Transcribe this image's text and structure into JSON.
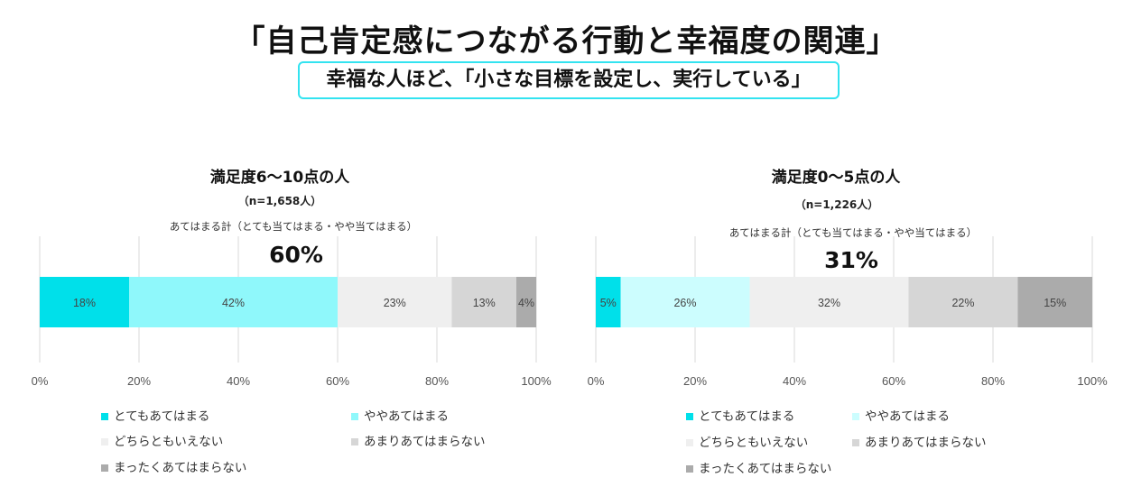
{
  "header": {
    "title": "「自己肯定感につながる行動と幸福度の関連」",
    "subtitle": "幸福な人ほど、「小さな目標を設定し、実行している」"
  },
  "chart_data": [
    {
      "type": "bar",
      "orientation": "horizontal-stacked-100",
      "title": "満足度6〜10点の人",
      "sample": "（n=1,658人）",
      "total_label": "あてはまる計（とても当てはまる・やや当てはまる）",
      "total_value": "60%",
      "xlim": [
        0,
        100
      ],
      "ticks": [
        "0%",
        "20%",
        "40%",
        "60%",
        "80%",
        "100%"
      ],
      "tick_values": [
        0,
        20,
        40,
        60,
        80,
        100
      ],
      "grid": true,
      "legend_position": "bottom",
      "series": [
        {
          "name": "とてもあてはまる",
          "values": [
            18
          ],
          "label": "18%",
          "color": "#00e0ea"
        },
        {
          "name": "ややあてはまる",
          "values": [
            42
          ],
          "label": "42%",
          "color": "#8ff8fb"
        },
        {
          "name": "どちらともいえない",
          "values": [
            23
          ],
          "label": "23%",
          "color": "#efefef"
        },
        {
          "name": "あまりあてはまらない",
          "values": [
            13
          ],
          "label": "13%",
          "color": "#d6d6d6"
        },
        {
          "name": "まったくあてはまらない",
          "values": [
            4
          ],
          "label": "4%",
          "color": "#ababab"
        }
      ]
    },
    {
      "type": "bar",
      "orientation": "horizontal-stacked-100",
      "title": "満足度0〜5点の人",
      "sample": "（n=1,226人）",
      "total_label": "あてはまる計（とても当てはまる・やや当てはまる）",
      "total_value": "31%",
      "xlim": [
        0,
        100
      ],
      "ticks": [
        "0%",
        "20%",
        "40%",
        "60%",
        "80%",
        "100%"
      ],
      "tick_values": [
        0,
        20,
        40,
        60,
        80,
        100
      ],
      "grid": true,
      "legend_position": "bottom",
      "series": [
        {
          "name": "とてもあてはまる",
          "values": [
            5
          ],
          "label": "5%",
          "color": "#00e0ea"
        },
        {
          "name": "ややあてはまる",
          "values": [
            26
          ],
          "label": "26%",
          "color": "#ccfdfe"
        },
        {
          "name": "どちらともいえない",
          "values": [
            32
          ],
          "label": "32%",
          "color": "#efefef"
        },
        {
          "name": "あまりあてはまらない",
          "values": [
            22
          ],
          "label": "22%",
          "color": "#d6d6d6"
        },
        {
          "name": "まったくあてはまらない",
          "values": [
            15
          ],
          "label": "15%",
          "color": "#ababab"
        }
      ]
    }
  ]
}
